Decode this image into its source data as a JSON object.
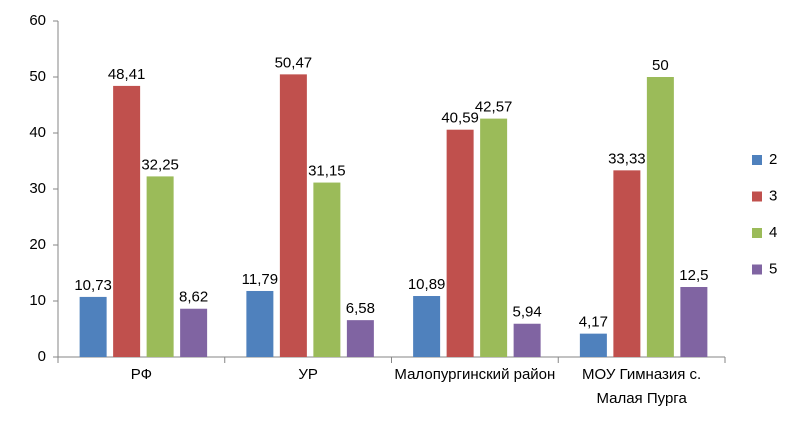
{
  "chart_data": {
    "type": "bar",
    "categories": [
      "РФ",
      "УР",
      "Малопургинский район",
      "МОУ Гимназия с. Малая Пурга"
    ],
    "series": [
      {
        "name": "2",
        "color": "#4f81bd",
        "values": [
          10.73,
          11.79,
          10.89,
          4.17
        ],
        "value_labels": [
          "10,73",
          "11,79",
          "10,89",
          "4,17"
        ]
      },
      {
        "name": "3",
        "color": "#c0504d",
        "values": [
          48.41,
          50.47,
          40.59,
          33.33
        ],
        "value_labels": [
          "48,41",
          "50,47",
          "40,59",
          "33,33"
        ]
      },
      {
        "name": "4",
        "color": "#9bbb59",
        "values": [
          32.25,
          31.15,
          42.57,
          50
        ],
        "value_labels": [
          "32,25",
          "31,15",
          "42,57",
          "50"
        ]
      },
      {
        "name": "5",
        "color": "#8064a2",
        "values": [
          8.62,
          6.58,
          5.94,
          12.5
        ],
        "value_labels": [
          "8,62",
          "6,58",
          "5,94",
          "12,5"
        ]
      }
    ],
    "ylim": [
      0,
      60
    ],
    "yticks": [
      0,
      10,
      20,
      30,
      40,
      50,
      60
    ],
    "grid": false,
    "legend": "right"
  }
}
